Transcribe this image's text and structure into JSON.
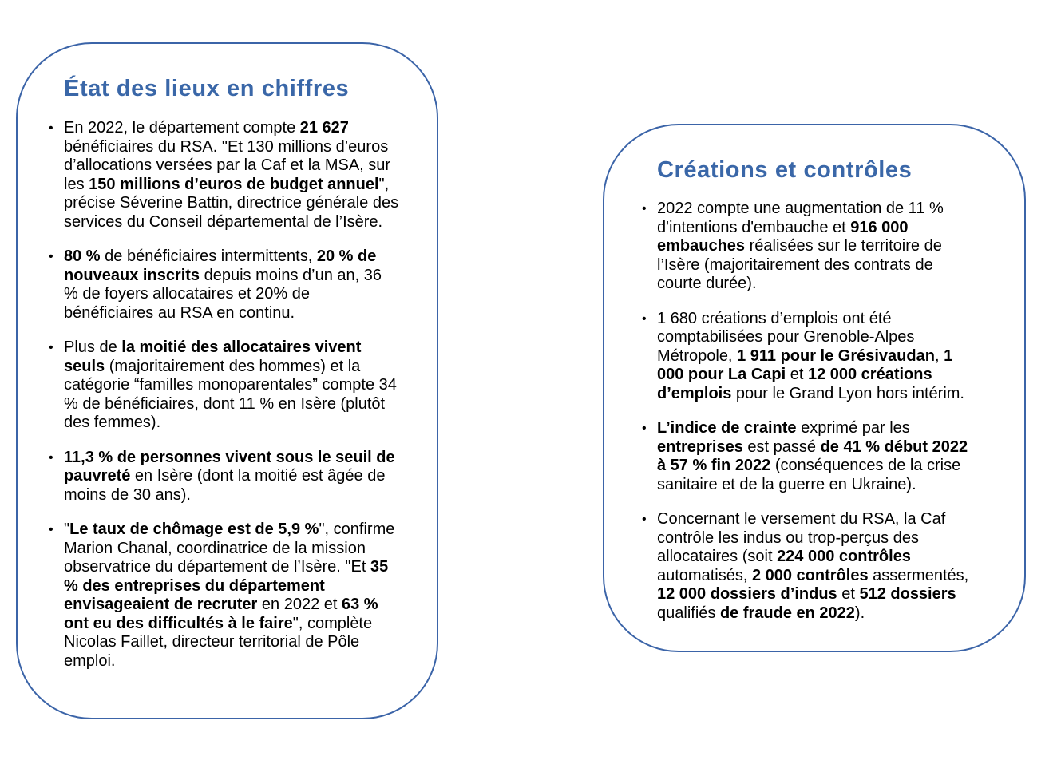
{
  "colors": {
    "accent": "#3a67a8",
    "border": "#3b64a8"
  },
  "left": {
    "title": "État des lieux en chiffres",
    "items": [
      [
        {
          "t": "En 2022, le département compte "
        },
        {
          "t": "21 627",
          "b": true
        },
        {
          "t": " bénéficiaires du RSA. \"Et 130 millions d’euros d’allocations versées par la Caf et la MSA, sur les "
        },
        {
          "t": "150 millions d’euros de budget annuel",
          "b": true
        },
        {
          "t": "\", précise Séverine Battin, directrice générale des services du Conseil départemental de l’Isère."
        }
      ],
      [
        {
          "t": "80 %",
          "b": true
        },
        {
          "t": " de bénéficiaires intermittents, "
        },
        {
          "t": "20 % de nouveaux inscrits",
          "b": true
        },
        {
          "t": " depuis moins d’un an, 36 % de foyers allocataires et 20% de bénéficiaires au RSA en continu."
        }
      ],
      [
        {
          "t": "Plus de "
        },
        {
          "t": "la moitié des allocataires vivent seuls",
          "b": true
        },
        {
          "t": " (majoritairement des hommes) et la catégorie “familles monoparentales” compte 34 % de bénéficiaires, dont 11 % en Isère (plutôt des femmes)."
        }
      ],
      [
        {
          "t": "11,3 % de personnes vivent sous le seuil de pauvreté",
          "b": true
        },
        {
          "t": " en Isère (dont la moitié est âgée de moins de 30 ans)."
        }
      ],
      [
        {
          "t": "\""
        },
        {
          "t": "Le taux de chômage est de 5,9 %",
          "b": true
        },
        {
          "t": "\", confirme Marion Chanal, coordinatrice de la mission observatrice du département de l’Isère. \"Et "
        },
        {
          "t": "35 % des entreprises du département envisageaient de recruter",
          "b": true
        },
        {
          "t": " en 2022 et "
        },
        {
          "t": "63 % ont eu des difficultés à le faire",
          "b": true
        },
        {
          "t": "\", complète Nicolas Faillet, directeur territorial de Pôle emploi."
        }
      ]
    ]
  },
  "right": {
    "title": "Créations et contrôles",
    "items": [
      [
        {
          "t": "2022 compte une augmentation de 11 % d'intentions d'embauche et "
        },
        {
          "t": "916 000 embauches",
          "b": true
        },
        {
          "t": " réalisées sur le territoire de l’Isère (majoritairement des contrats de courte durée)."
        }
      ],
      [
        {
          "t": "1 680 créations d’emplois ont été comptabilisées pour Grenoble-Alpes Métropole, "
        },
        {
          "t": "1 911 pour le Grésivaudan",
          "b": true
        },
        {
          "t": ", "
        },
        {
          "t": "1 000 pour La Capi",
          "b": true
        },
        {
          "t": " et "
        },
        {
          "t": "12 000 créations d’emplois",
          "b": true
        },
        {
          "t": " pour le Grand Lyon hors intérim."
        }
      ],
      [
        {
          "t": "L’indice de crainte",
          "b": true
        },
        {
          "t": " exprimé par les "
        },
        {
          "t": "entreprises",
          "b": true
        },
        {
          "t": " est passé "
        },
        {
          "t": "de 41 % début 2022 à 57 % fin 2022",
          "b": true
        },
        {
          "t": " (conséquences de la crise sanitaire et de la guerre en Ukraine)."
        }
      ],
      [
        {
          "t": "Concernant le versement du RSA, la Caf contrôle les indus ou trop-perçus des allocataires (soit "
        },
        {
          "t": "224 000 contrôles",
          "b": true
        },
        {
          "t": " automatisés, "
        },
        {
          "t": "2 000 contrôles",
          "b": true
        },
        {
          "t": " assermentés, "
        },
        {
          "t": "12 000 dossiers d’indus",
          "b": true
        },
        {
          "t": " et "
        },
        {
          "t": "512 dossiers",
          "b": true
        },
        {
          "t": " qualifiés "
        },
        {
          "t": "de fraude en 2022",
          "b": true
        },
        {
          "t": ")."
        }
      ]
    ]
  }
}
